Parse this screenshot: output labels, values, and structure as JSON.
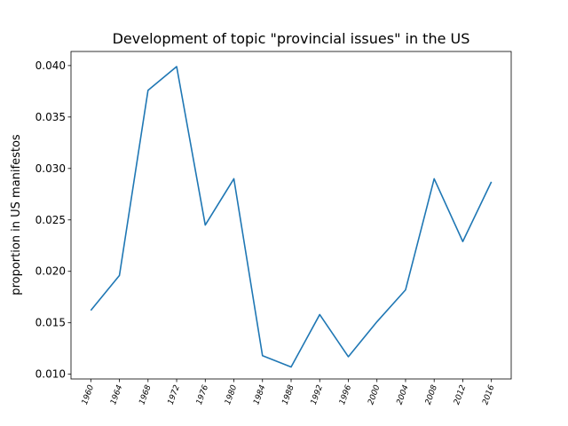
{
  "chart_data": {
    "type": "line",
    "title": "Development of topic \"provincial issues\" in the US",
    "xlabel": "",
    "ylabel": "proportion in US manifestos",
    "x": [
      "1960",
      "1964",
      "1968",
      "1972",
      "1976",
      "1980",
      "1984",
      "1988",
      "1992",
      "1996",
      "2000",
      "2004",
      "2008",
      "2012",
      "2016"
    ],
    "series": [
      {
        "values": [
          0.0162,
          0.0196,
          0.0376,
          0.0399,
          0.0245,
          0.029,
          0.0118,
          0.0107,
          0.0158,
          0.0117,
          0.0151,
          0.0182,
          0.029,
          0.0229,
          0.0287
        ],
        "color": "#1f77b4"
      }
    ],
    "yticks": [
      "0.010",
      "0.015",
      "0.020",
      "0.025",
      "0.030",
      "0.035",
      "0.040"
    ],
    "ylim": [
      0.00954,
      0.04137
    ],
    "grid": false,
    "legend": "none"
  }
}
